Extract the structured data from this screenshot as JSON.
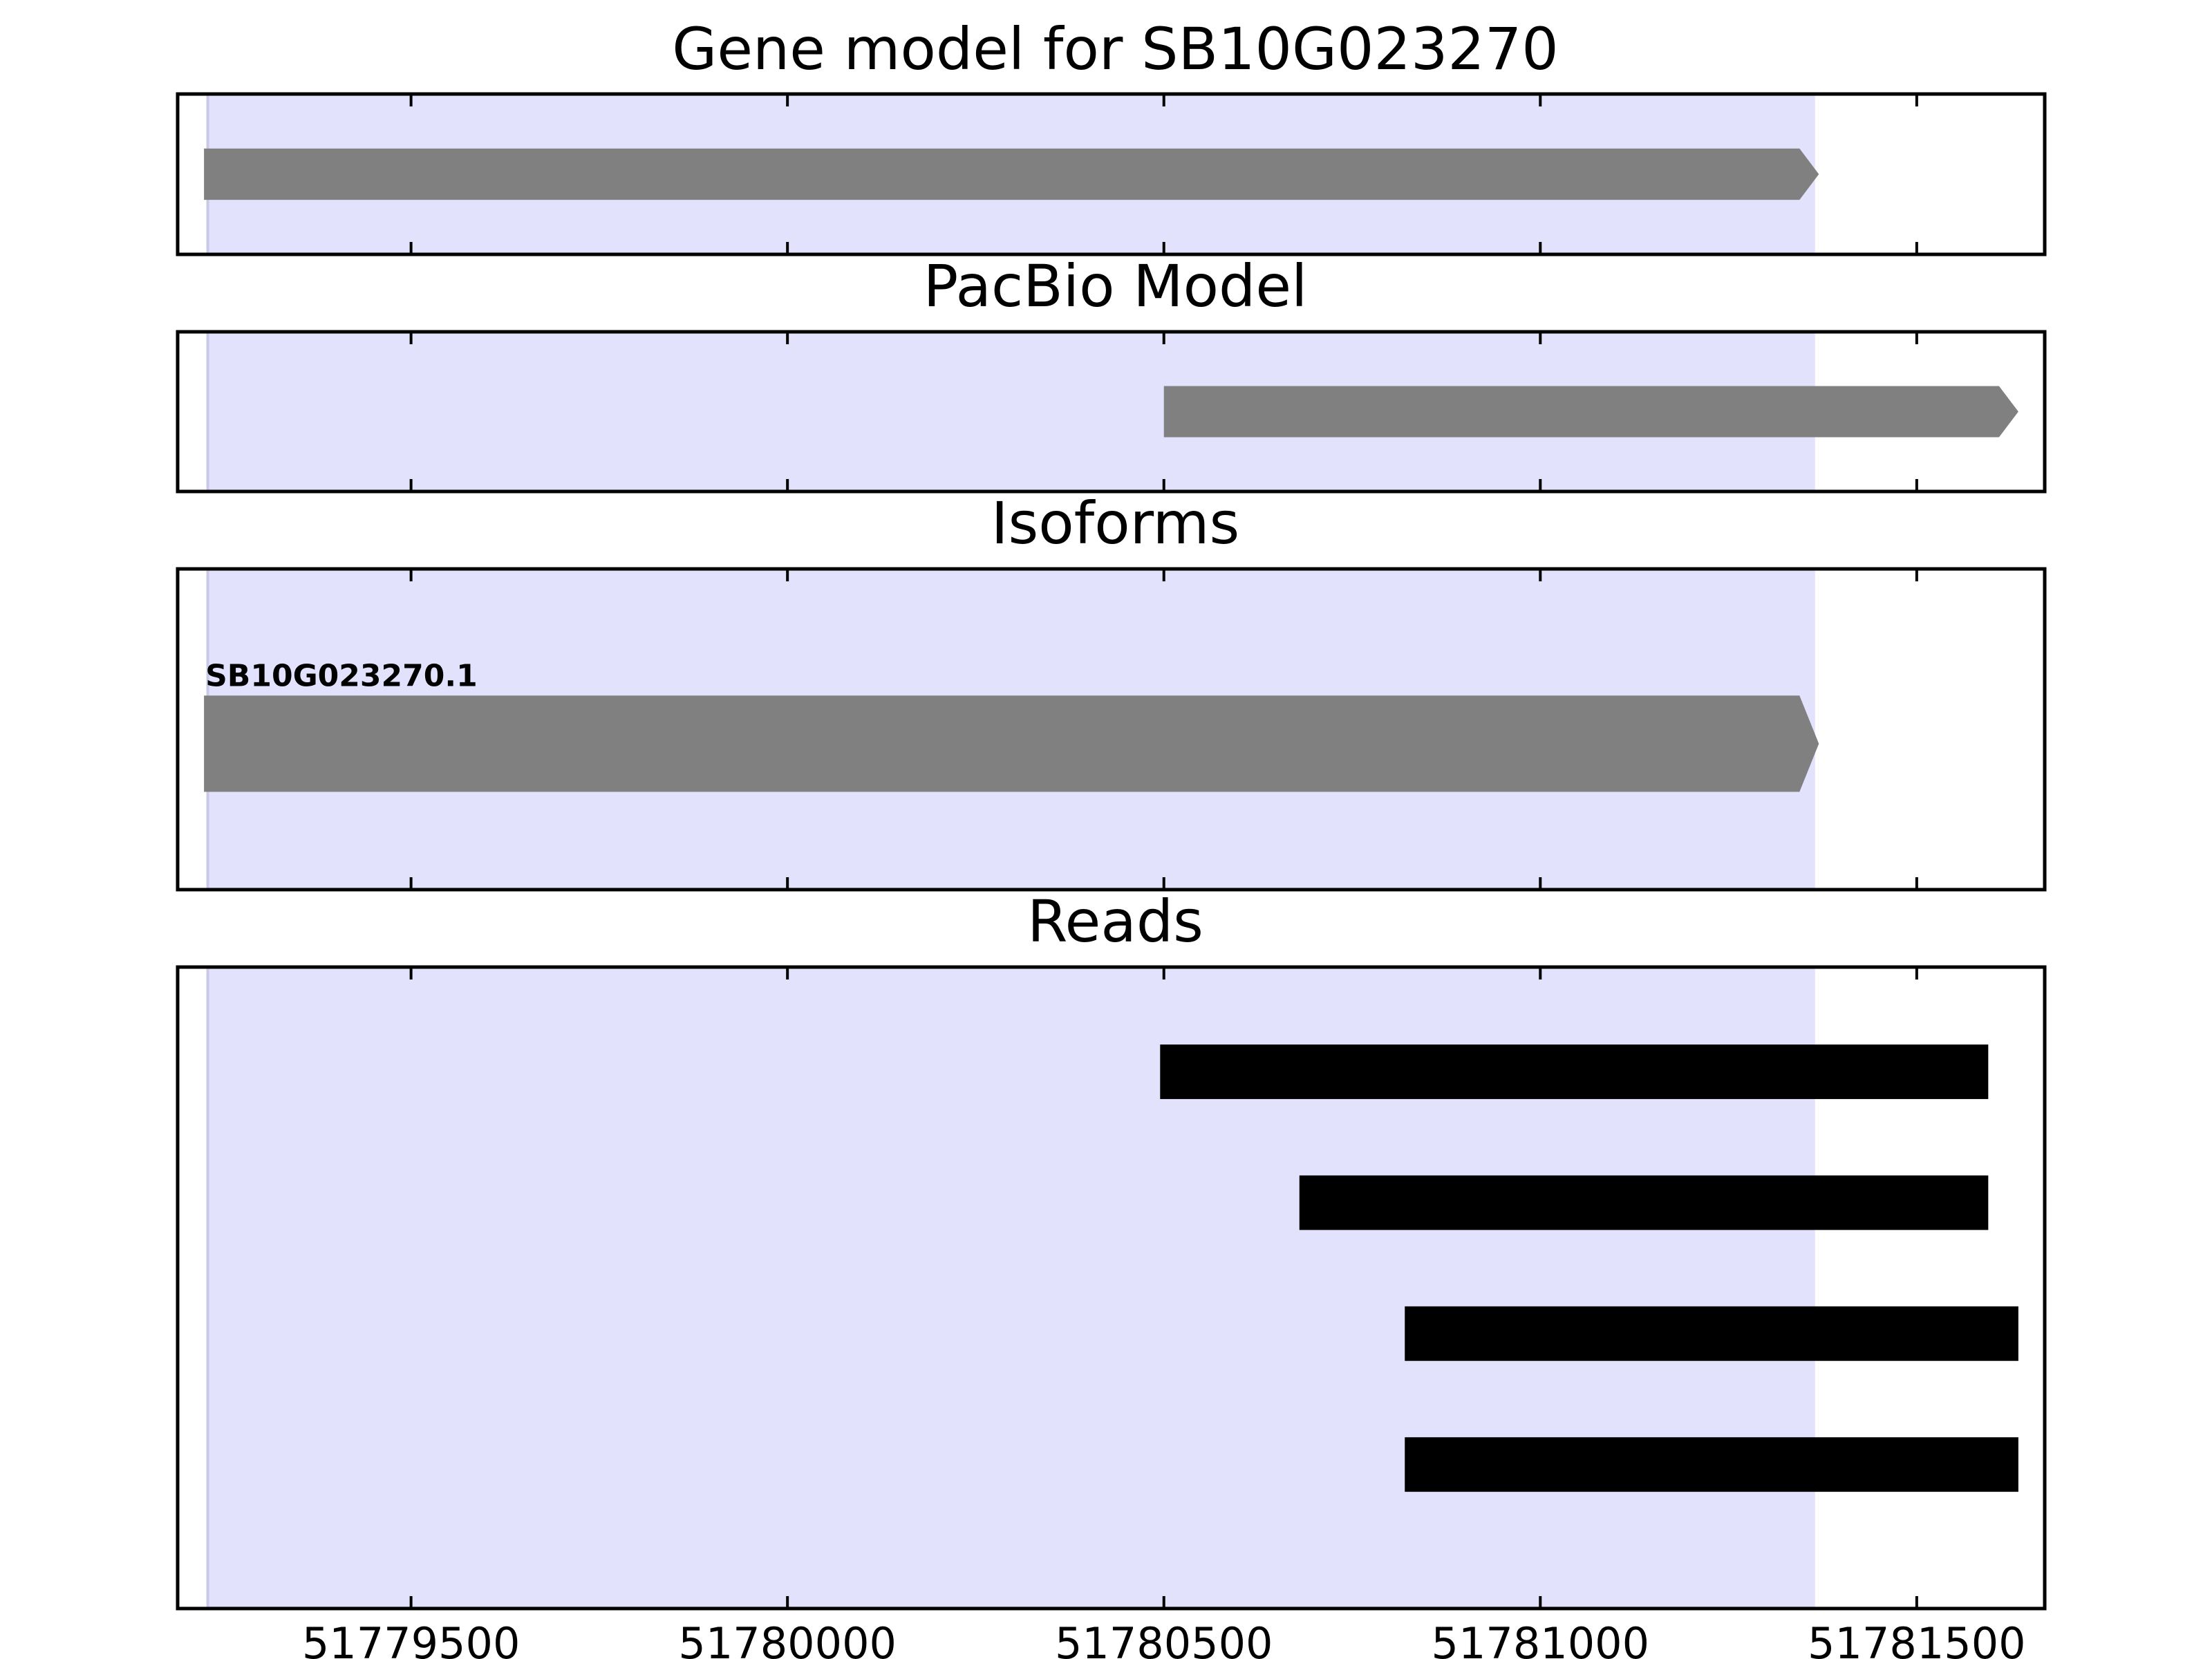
{
  "chart_data": [
    {
      "type": "bar",
      "panel": "gene_model",
      "title": "Gene model for SB10G023270",
      "xlim": [
        51779190,
        51781670
      ],
      "highlight": {
        "start": 51779230,
        "end": 51781365,
        "color": "#e2e2fd"
      },
      "features": [
        {
          "start": 51779225,
          "end": 51781370,
          "strand": "+",
          "color": "#808080",
          "thickness": 0.32
        }
      ]
    },
    {
      "type": "bar",
      "panel": "pacbio",
      "title": "PacBio Model",
      "xlim": [
        51779190,
        51781670
      ],
      "highlight": {
        "start": 51779230,
        "end": 51781365,
        "color": "#e2e2fd"
      },
      "features": [
        {
          "start": 51780500,
          "end": 51781635,
          "strand": "+",
          "color": "#808080",
          "thickness": 0.32
        }
      ]
    },
    {
      "type": "bar",
      "panel": "isoforms",
      "title": "Isoforms",
      "xlim": [
        51779190,
        51781670
      ],
      "highlight": {
        "start": 51779230,
        "end": 51781365,
        "color": "#e2e2fd"
      },
      "features": [
        {
          "start": 51779225,
          "end": 51781370,
          "strand": "+",
          "color": "#808080",
          "thickness": 0.3,
          "label": "SB10G023270.1"
        }
      ]
    },
    {
      "type": "bar",
      "panel": "reads",
      "title": "Reads",
      "xlim": [
        51779190,
        51781670
      ],
      "xticks": [
        51779500,
        51780000,
        51780500,
        51781000,
        51781500
      ],
      "highlight": {
        "start": 51779230,
        "end": 51781365,
        "color": "#e2e2fd"
      },
      "features": [
        {
          "start": 51780495,
          "end": 51781595,
          "color": "#000000",
          "thickness": 0.085
        },
        {
          "start": 51780680,
          "end": 51781595,
          "color": "#000000",
          "thickness": 0.085
        },
        {
          "start": 51780820,
          "end": 51781635,
          "color": "#000000",
          "thickness": 0.085
        },
        {
          "start": 51780820,
          "end": 51781635,
          "color": "#000000",
          "thickness": 0.085
        }
      ]
    }
  ]
}
